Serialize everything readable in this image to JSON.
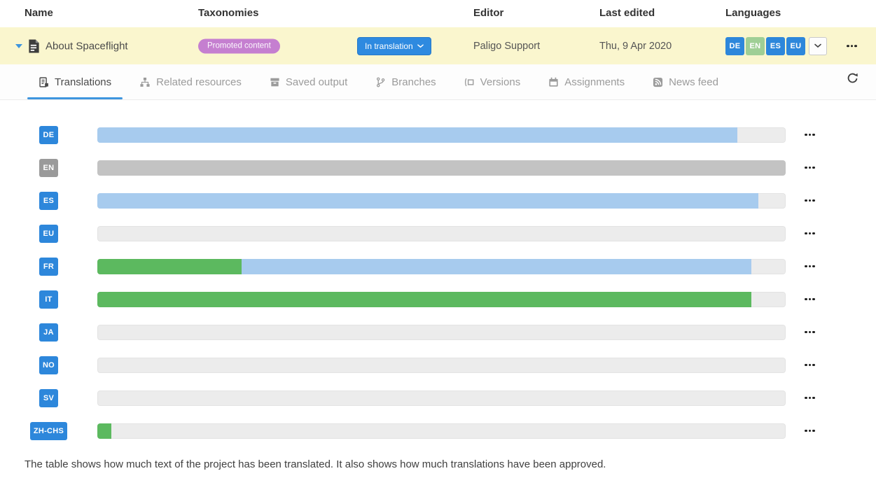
{
  "header": {
    "columns": [
      {
        "label": "Name"
      },
      {
        "label": "Taxonomies"
      },
      {
        "label": "Editor"
      },
      {
        "label": "Last edited"
      },
      {
        "label": "Languages"
      }
    ]
  },
  "document_row": {
    "name": "About Spaceflight",
    "taxonomy": "Promoted content",
    "status": "In translation",
    "editor": "Paligo Support",
    "last_edited": "Thu, 9 Apr 2020",
    "language_badges": [
      {
        "code": "DE",
        "badge": "blue"
      },
      {
        "code": "EN",
        "badge": "green"
      },
      {
        "code": "ES",
        "badge": "blue"
      },
      {
        "code": "EU",
        "badge": "blue"
      }
    ]
  },
  "tabs": [
    {
      "label": "Translations",
      "active": true
    },
    {
      "label": "Related resources",
      "active": false
    },
    {
      "label": "Saved output",
      "active": false
    },
    {
      "label": "Branches",
      "active": false
    },
    {
      "label": "Versions",
      "active": false
    },
    {
      "label": "Assignments",
      "active": false
    },
    {
      "label": "News feed",
      "active": false
    }
  ],
  "translations_panel": {
    "rows": [
      {
        "code": "DE",
        "badge": "blue",
        "approved_pct": 0,
        "translated_pct": 93,
        "source": false
      },
      {
        "code": "EN",
        "badge": "gray",
        "approved_pct": 0,
        "translated_pct": 0,
        "source": true
      },
      {
        "code": "ES",
        "badge": "blue",
        "approved_pct": 0,
        "translated_pct": 96,
        "source": false
      },
      {
        "code": "EU",
        "badge": "blue",
        "approved_pct": 0,
        "translated_pct": 0,
        "source": false
      },
      {
        "code": "FR",
        "badge": "blue",
        "approved_pct": 21,
        "translated_pct": 74,
        "source": false
      },
      {
        "code": "IT",
        "badge": "blue",
        "approved_pct": 95,
        "translated_pct": 0,
        "source": false
      },
      {
        "code": "JA",
        "badge": "blue",
        "approved_pct": 0,
        "translated_pct": 0,
        "source": false
      },
      {
        "code": "NO",
        "badge": "blue",
        "approved_pct": 0,
        "translated_pct": 0,
        "source": false
      },
      {
        "code": "SV",
        "badge": "blue",
        "approved_pct": 0,
        "translated_pct": 0,
        "source": false
      },
      {
        "code": "ZH-CHS",
        "badge": "blue",
        "approved_pct": 2,
        "translated_pct": 0,
        "source": false
      }
    ],
    "caption": "The table shows how much text of the project has been translated. It also shows how much translations have been approved."
  },
  "colors": {
    "row_highlight": "#FAF6CE",
    "translated_blue": "#A7CBEE",
    "approved_green": "#5CB95F",
    "source_gray": "#C3C3C3",
    "track_gray": "#ECECEC",
    "badge_blue": "#2D87DB",
    "badge_green": "#9FCF95",
    "badge_gray": "#9A9A9A",
    "taxonomy_purple": "#C57FD0",
    "status_blue": "#2E8AE0",
    "active_tab_underline": "#3E95DE"
  }
}
